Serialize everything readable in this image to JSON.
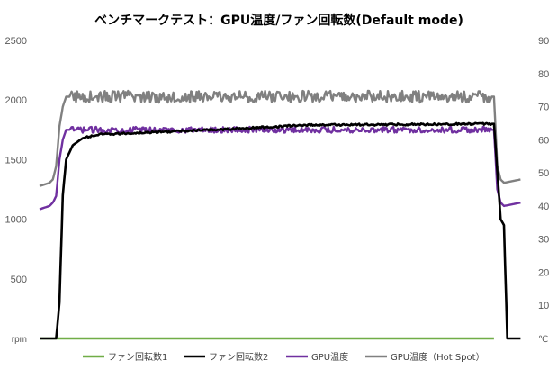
{
  "chart_data": {
    "type": "line",
    "title": "ベンチマークテスト：GPU温度/ファン回転数(Default mode)",
    "y_left": {
      "unit": "rpm",
      "ylim": [
        0,
        2500
      ],
      "ticks": [
        0,
        500,
        1000,
        1500,
        2000,
        2500
      ],
      "tick_labels": [
        "",
        "500",
        "1000",
        "1500",
        "2000",
        "2500"
      ]
    },
    "y_right": {
      "unit": "℃",
      "ylim": [
        0,
        90
      ],
      "ticks": [
        0,
        10,
        20,
        30,
        40,
        50,
        60,
        70,
        80,
        90
      ],
      "tick_labels": [
        "",
        "10",
        "20",
        "30",
        "40",
        "50",
        "60",
        "70",
        "80",
        "90"
      ]
    },
    "grid": false,
    "legend_position": "bottom",
    "x_count": 140,
    "series": [
      {
        "name": "ファン回転数1",
        "axis": "left",
        "color": "#70ad47",
        "keyframes": [
          [
            0,
            0
          ],
          [
            6,
            0
          ],
          [
            137,
            0
          ]
        ]
      },
      {
        "name": "ファン回転数2",
        "axis": "left",
        "color": "#000000",
        "keyframes": [
          [
            0,
            0
          ],
          [
            5,
            0
          ],
          [
            6,
            300
          ],
          [
            7,
            1200
          ],
          [
            8,
            1500
          ],
          [
            10,
            1620
          ],
          [
            13,
            1680
          ],
          [
            18,
            1710
          ],
          [
            35,
            1730
          ],
          [
            60,
            1760
          ],
          [
            80,
            1790
          ],
          [
            137,
            1800
          ],
          [
            138,
            1400
          ],
          [
            139,
            1000
          ],
          [
            140,
            950
          ],
          [
            141,
            0
          ],
          [
            145,
            0
          ]
        ]
      },
      {
        "name": "GPU温度",
        "axis": "right",
        "color": "#7030a0",
        "keyframes": [
          [
            0,
            39
          ],
          [
            3,
            40
          ],
          [
            4,
            41
          ],
          [
            5,
            43
          ],
          [
            6,
            54
          ],
          [
            7,
            60
          ],
          [
            8,
            63
          ],
          [
            137,
            63
          ],
          [
            138,
            45
          ],
          [
            139,
            41
          ],
          [
            140,
            40
          ],
          [
            145,
            41
          ]
        ]
      },
      {
        "name": "GPU温度（Hot Spot）",
        "axis": "right",
        "color": "#808080",
        "keyframes": [
          [
            0,
            46
          ],
          [
            3,
            47
          ],
          [
            4,
            48
          ],
          [
            5,
            52
          ],
          [
            6,
            64
          ],
          [
            7,
            70
          ],
          [
            8,
            73
          ],
          [
            137,
            73
          ],
          [
            138,
            52
          ],
          [
            139,
            48
          ],
          [
            140,
            47
          ],
          [
            145,
            48
          ]
        ]
      }
    ]
  }
}
